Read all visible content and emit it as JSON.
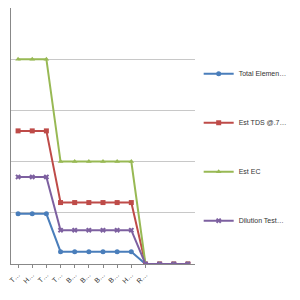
{
  "chart_data": {
    "type": "line",
    "categories": [
      "T…",
      "H…",
      "T…",
      "T…",
      "B…",
      "B…",
      "B…",
      "B…",
      "H…",
      "R…",
      null,
      null,
      null
    ],
    "series": [
      {
        "name": "Total Elemen…",
        "color": "#4a7ebb",
        "marker": "circle",
        "values": [
          490,
          490,
          490,
          120,
          120,
          120,
          120,
          120,
          120,
          0,
          0,
          0,
          0
        ]
      },
      {
        "name": "Est TDS @.7…",
        "color": "#be4b48",
        "marker": "square",
        "values": [
          1300,
          1300,
          1300,
          600,
          600,
          600,
          600,
          600,
          600,
          0,
          0,
          0,
          0
        ]
      },
      {
        "name": "Est EC",
        "color": "#98b954",
        "marker": "triangle-up",
        "values": [
          2000,
          2000,
          2000,
          1000,
          1000,
          1000,
          1000,
          1000,
          1000,
          0,
          0,
          0,
          0
        ]
      },
      {
        "name": "Dilution Test…",
        "color": "#7d60a0",
        "marker": "x",
        "values": [
          850,
          850,
          850,
          330,
          330,
          330,
          330,
          330,
          330,
          0,
          0,
          0,
          0
        ]
      }
    ],
    "ylim": [
      0,
      2500
    ],
    "yticks": [
      0,
      500,
      1000,
      1500,
      2000,
      2500
    ],
    "grid": true,
    "legend": "right",
    "tick_labels": "x"
  }
}
